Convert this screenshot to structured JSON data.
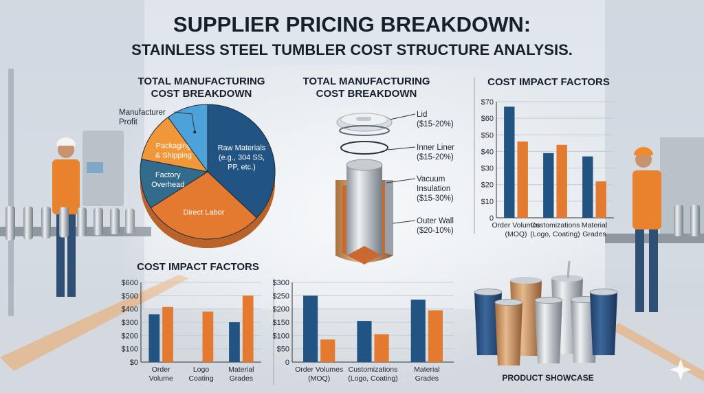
{
  "title": {
    "line1": "SUPPLIER PRICING BREAKDOWN:",
    "line2": "STAINLESS STEEL TUMBLER COST STRUCTURE ANALYSIS."
  },
  "colors": {
    "blue": "#215483",
    "orange": "#e37a2f",
    "light_blue": "#4ea2da",
    "teal": "#336b8c",
    "text": "#16202c"
  },
  "tumbler": {
    "title_lines": [
      "TOTAL MANUFACTURING",
      "COST BREAKDOWN"
    ],
    "parts": [
      {
        "lines": [
          "Lid",
          "($15-20%)"
        ]
      },
      {
        "lines": [
          "Inner Liner",
          "($15-20%)"
        ]
      },
      {
        "lines": [
          "Vacuum",
          "Insulation",
          "($15-30%)"
        ]
      },
      {
        "lines": [
          "Outer Wall",
          "($20-10%)"
        ]
      }
    ]
  },
  "showcase": {
    "label": "PRODUCT SHOWCASE"
  },
  "chart_data": [
    {
      "id": "pie",
      "type": "pie",
      "title_lines": [
        "TOTAL MANUFACTURING",
        "COST BREAKDOWN"
      ],
      "slices": [
        {
          "label_lines": [
            "Raw Materials",
            "(e.g., 304 SS,",
            "PP, etc.)"
          ],
          "value": 37,
          "color": "#215483"
        },
        {
          "label_lines": [
            "Direct Labor"
          ],
          "value": 29,
          "color": "#e37a2f"
        },
        {
          "label_lines": [
            "Factory",
            "Overhead"
          ],
          "value": 12,
          "color": "#336b8c"
        },
        {
          "label_lines": [
            "Packaging",
            "& Shipping"
          ],
          "value": 12,
          "color": "#f0973a"
        },
        {
          "label_lines": [
            "Manufacturer",
            "Profit"
          ],
          "value": 10,
          "color": "#4ea2da",
          "label_outside": true
        }
      ]
    },
    {
      "id": "bar-top-right",
      "type": "bar",
      "title": "COST IMPACT FACTORS",
      "categories": [
        [
          "Order Volumes",
          "(MOQ)"
        ],
        [
          "Customizations",
          "(Logo, Coating)"
        ],
        [
          "Material",
          "Grades"
        ]
      ],
      "series": [
        {
          "values": [
            67,
            39,
            37
          ],
          "color": "#215483"
        },
        {
          "values": [
            46,
            44,
            22
          ],
          "color": "#e37a2f"
        }
      ],
      "ylim": [
        0,
        70
      ],
      "yticks": [
        0,
        10,
        20,
        30,
        40,
        50,
        60,
        70
      ],
      "ytick_labels": [
        "0",
        "$10",
        "$20",
        "$30",
        "$40",
        "$50",
        "$60",
        "$70"
      ],
      "grid": true
    },
    {
      "id": "bar-bottom-left",
      "type": "bar",
      "title": "COST IMPACT FACTORS",
      "categories": [
        [
          "Order",
          "Volume"
        ],
        [
          "Logo",
          "Coating"
        ],
        [
          "Material",
          "Grades"
        ]
      ],
      "series": [
        {
          "values": [
            360,
            null,
            300
          ],
          "color": "#215483"
        },
        {
          "values": [
            415,
            380,
            500
          ],
          "color": "#e37a2f"
        }
      ],
      "ylim": [
        0,
        600
      ],
      "yticks": [
        0,
        100,
        200,
        300,
        400,
        500,
        600
      ],
      "ytick_labels": [
        "$0",
        "$100",
        "$200",
        "$300",
        "$400",
        "$500",
        "$600"
      ],
      "grid": true
    },
    {
      "id": "bar-bottom-middle",
      "type": "bar",
      "title": "",
      "categories": [
        [
          "Order Volumes",
          "(MOQ)"
        ],
        [
          "Customizations",
          "(Logo, Coating)"
        ],
        [
          "Material",
          "Grades"
        ]
      ],
      "series": [
        {
          "values": [
            250,
            155,
            235
          ],
          "color": "#215483"
        },
        {
          "values": [
            85,
            105,
            195
          ],
          "color": "#e37a2f"
        }
      ],
      "ylim": [
        0,
        300
      ],
      "yticks": [
        0,
        50,
        100,
        150,
        200,
        250,
        300
      ],
      "ytick_labels": [
        "0",
        "$50",
        "$100",
        "$150",
        "$200",
        "$250",
        "$300"
      ],
      "grid": true
    }
  ]
}
